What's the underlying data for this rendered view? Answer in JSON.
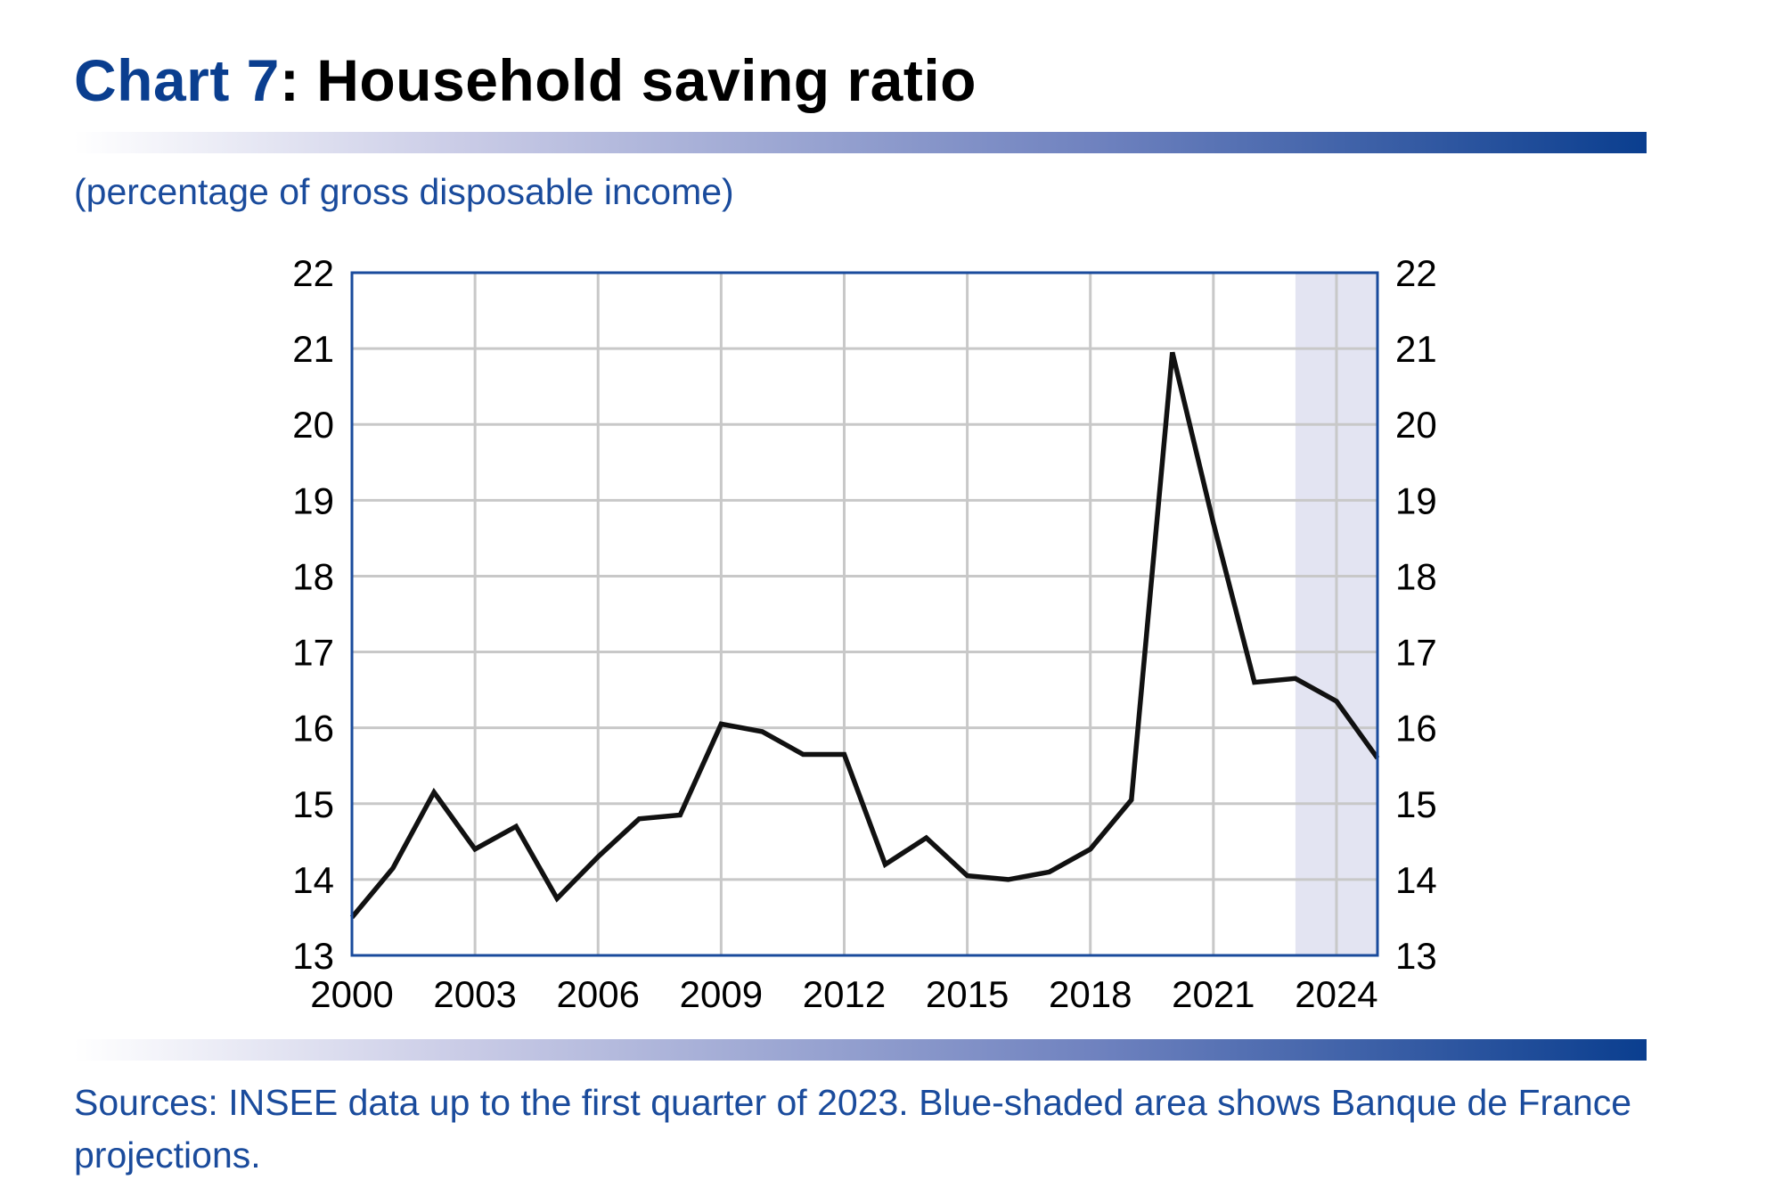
{
  "header": {
    "title_prefix": "Chart 7",
    "title_main": ": Household saving ratio"
  },
  "subtitle": "(percentage of gross disposable income)",
  "source": "Sources: INSEE data up to the first quarter of 2023. Blue-shaded area shows Banque de France projections.",
  "colors": {
    "brand_blue": "#0a3e8f",
    "text_blue": "#1a4b9c",
    "line": "#111111",
    "grid": "#c8c8c8",
    "projection_shade": "#e3e4f2",
    "frame": "#1a4b9c"
  },
  "chart_data": {
    "type": "line",
    "title": "",
    "xlabel": "",
    "ylabel": "",
    "xlim": [
      2000,
      2025
    ],
    "ylim": [
      13,
      22
    ],
    "x_ticks": [
      "2000",
      "2003",
      "2006",
      "2009",
      "2012",
      "2015",
      "2018",
      "2021",
      "2024"
    ],
    "y_ticks": [
      "13",
      "14",
      "15",
      "16",
      "17",
      "18",
      "19",
      "20",
      "21",
      "22"
    ],
    "y_axis_sides": [
      "left",
      "right"
    ],
    "grid": true,
    "legend": "none",
    "projection_range": [
      2023,
      2025
    ],
    "series": [
      {
        "x": [
          2000,
          2001,
          2002,
          2003,
          2004,
          2005,
          2006,
          2007,
          2008,
          2009,
          2010,
          2011,
          2012,
          2013,
          2014,
          2015,
          2016,
          2017,
          2018,
          2019,
          2020,
          2021,
          2022,
          2023,
          2024,
          2025
        ],
        "values": [
          13.5,
          14.15,
          15.15,
          14.4,
          14.7,
          13.75,
          14.3,
          14.8,
          14.85,
          16.05,
          15.95,
          15.65,
          15.65,
          14.2,
          14.55,
          14.05,
          14.0,
          14.1,
          14.4,
          15.05,
          20.95,
          18.7,
          16.6,
          16.65,
          16.35,
          15.6
        ]
      }
    ]
  }
}
